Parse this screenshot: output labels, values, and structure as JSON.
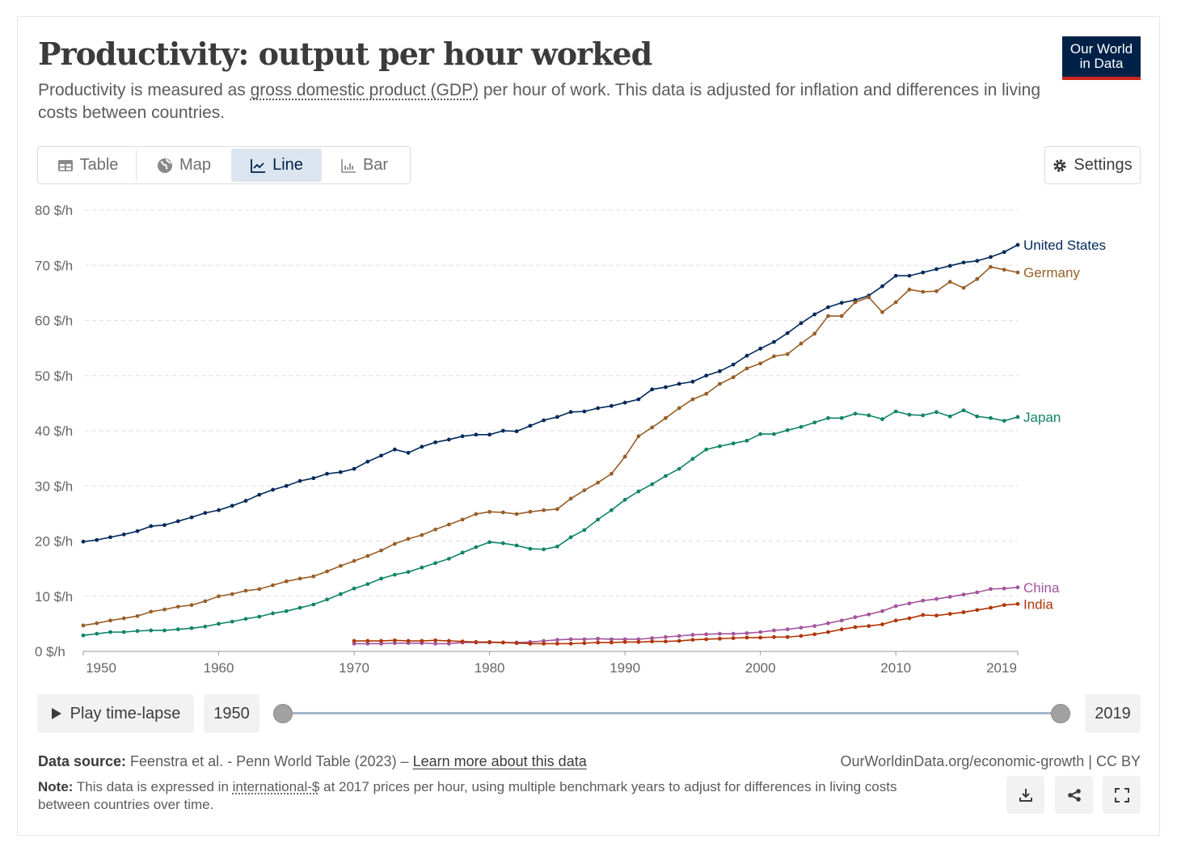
{
  "header": {
    "title": "Productivity: output per hour worked",
    "subtitle_before": "Productivity is measured as ",
    "subtitle_link": "gross domestic product (GDP)",
    "subtitle_after": " per hour of work. This data is adjusted for inflation and differences in living costs between countries.",
    "logo_line1": "Our World",
    "logo_line2": "in Data"
  },
  "tabs": [
    {
      "label": "Table",
      "icon": "table-icon"
    },
    {
      "label": "Map",
      "icon": "globe-icon"
    },
    {
      "label": "Line",
      "icon": "line-chart-icon",
      "active": true
    },
    {
      "label": "Bar",
      "icon": "bar-chart-icon"
    }
  ],
  "settings_label": "Settings",
  "timeline": {
    "play_label": "Play time-lapse",
    "start": "1950",
    "end": "2019"
  },
  "footer": {
    "source_label": "Data source:",
    "source_text": " Feenstra et al. - Penn World Table (2023) – ",
    "source_link": "Learn more about this data",
    "credit": "OurWorldinData.org/economic-growth | CC BY",
    "note_label": "Note:",
    "note_before": " This data is expressed in ",
    "note_link": "international-$",
    "note_after": " at 2017 prices per hour, using multiple benchmark years to adjust for differences in living costs between countries over time."
  },
  "chart_data": {
    "type": "line",
    "title": "Productivity: output per hour worked",
    "xlabel": "",
    "ylabel": "",
    "xlim": [
      1950,
      2019
    ],
    "ylim": [
      0,
      80
    ],
    "yticks": [
      0,
      10,
      20,
      30,
      40,
      50,
      60,
      70,
      80
    ],
    "ytick_labels": [
      "0 $/h",
      "10 $/h",
      "20 $/h",
      "30 $/h",
      "40 $/h",
      "50 $/h",
      "60 $/h",
      "70 $/h",
      "80 $/h"
    ],
    "xticks": [
      1950,
      1960,
      1970,
      1980,
      1990,
      2000,
      2010,
      2019
    ],
    "xtick_labels": [
      "1950",
      "1960",
      "1970",
      "1980",
      "1990",
      "2000",
      "2010",
      "2019"
    ],
    "grid": "horizontal dashed",
    "legend": "inline labels at line ends",
    "series": [
      {
        "name": "United States",
        "color": "#00295b",
        "start": 1950,
        "values": [
          19.9,
          20.2,
          20.7,
          21.2,
          21.8,
          22.7,
          22.9,
          23.6,
          24.3,
          25.1,
          25.6,
          26.4,
          27.3,
          28.4,
          29.3,
          30.0,
          30.9,
          31.4,
          32.2,
          32.5,
          33.1,
          34.4,
          35.5,
          36.6,
          36.0,
          37.1,
          37.9,
          38.4,
          39.0,
          39.3,
          39.3,
          40.0,
          39.9,
          40.9,
          41.9,
          42.5,
          43.4,
          43.5,
          44.1,
          44.5,
          45.1,
          45.7,
          47.5,
          47.9,
          48.5,
          48.9,
          50.0,
          50.8,
          52.0,
          53.6,
          54.9,
          56.1,
          57.7,
          59.5,
          61.1,
          62.4,
          63.2,
          63.7,
          64.5,
          66.2,
          68.1,
          68.1,
          68.7,
          69.3,
          69.9,
          70.5,
          70.8,
          71.5,
          72.4,
          73.7
        ]
      },
      {
        "name": "Germany",
        "color": "#985f28",
        "start": 1950,
        "values": [
          4.7,
          5.1,
          5.6,
          6.0,
          6.4,
          7.2,
          7.6,
          8.1,
          8.4,
          9.1,
          10.0,
          10.4,
          11.0,
          11.3,
          12.0,
          12.7,
          13.2,
          13.6,
          14.5,
          15.5,
          16.4,
          17.3,
          18.3,
          19.5,
          20.4,
          21.1,
          22.1,
          23.0,
          23.9,
          24.9,
          25.3,
          25.2,
          24.9,
          25.3,
          25.6,
          25.8,
          27.7,
          29.2,
          30.6,
          32.2,
          35.3,
          39.0,
          40.6,
          42.3,
          44.1,
          45.7,
          46.7,
          48.5,
          49.7,
          51.3,
          52.2,
          53.5,
          53.9,
          55.8,
          57.6,
          60.8,
          60.8,
          63.3,
          64.2,
          61.5,
          63.3,
          65.6,
          65.2,
          65.3,
          67.0,
          65.9,
          67.5,
          69.7,
          69.2,
          68.7
        ]
      },
      {
        "name": "Japan",
        "color": "#108467",
        "start": 1950,
        "values": [
          2.9,
          3.2,
          3.5,
          3.5,
          3.7,
          3.8,
          3.8,
          4.0,
          4.2,
          4.5,
          5.0,
          5.4,
          5.9,
          6.3,
          6.9,
          7.3,
          7.9,
          8.5,
          9.4,
          10.4,
          11.4,
          12.2,
          13.2,
          13.9,
          14.4,
          15.2,
          16.0,
          16.8,
          17.9,
          18.9,
          19.8,
          19.6,
          19.2,
          18.6,
          18.5,
          19.0,
          20.7,
          22.0,
          23.9,
          25.6,
          27.5,
          29.0,
          30.3,
          31.8,
          33.1,
          34.9,
          36.6,
          37.2,
          37.7,
          38.2,
          39.4,
          39.4,
          40.1,
          40.7,
          41.5,
          42.3,
          42.3,
          43.1,
          42.8,
          42.1,
          43.5,
          42.9,
          42.8,
          43.4,
          42.6,
          43.7,
          42.6,
          42.3,
          41.8,
          42.5
        ]
      },
      {
        "name": "China",
        "color": "#a2559c",
        "start": 1970,
        "values": [
          1.4,
          1.4,
          1.4,
          1.5,
          1.5,
          1.5,
          1.4,
          1.4,
          1.6,
          1.6,
          1.6,
          1.6,
          1.6,
          1.7,
          1.9,
          2.1,
          2.2,
          2.2,
          2.3,
          2.2,
          2.2,
          2.2,
          2.4,
          2.6,
          2.8,
          3.0,
          3.1,
          3.2,
          3.2,
          3.3,
          3.5,
          3.8,
          4.0,
          4.3,
          4.6,
          5.1,
          5.6,
          6.2,
          6.7,
          7.3,
          8.2,
          8.7,
          9.2,
          9.5,
          9.9,
          10.3,
          10.7,
          11.3,
          11.4,
          11.6
        ]
      },
      {
        "name": "India",
        "color": "#b13507",
        "start": 1970,
        "values": [
          1.9,
          1.9,
          1.9,
          2.0,
          1.9,
          1.9,
          2.0,
          1.9,
          1.8,
          1.7,
          1.7,
          1.6,
          1.5,
          1.4,
          1.4,
          1.4,
          1.4,
          1.5,
          1.6,
          1.6,
          1.7,
          1.7,
          1.8,
          1.8,
          1.9,
          2.1,
          2.2,
          2.3,
          2.4,
          2.5,
          2.5,
          2.6,
          2.6,
          2.8,
          3.1,
          3.5,
          4.0,
          4.4,
          4.6,
          4.9,
          5.6,
          6.0,
          6.6,
          6.5,
          6.8,
          7.1,
          7.5,
          7.9,
          8.4,
          8.6
        ]
      }
    ]
  }
}
